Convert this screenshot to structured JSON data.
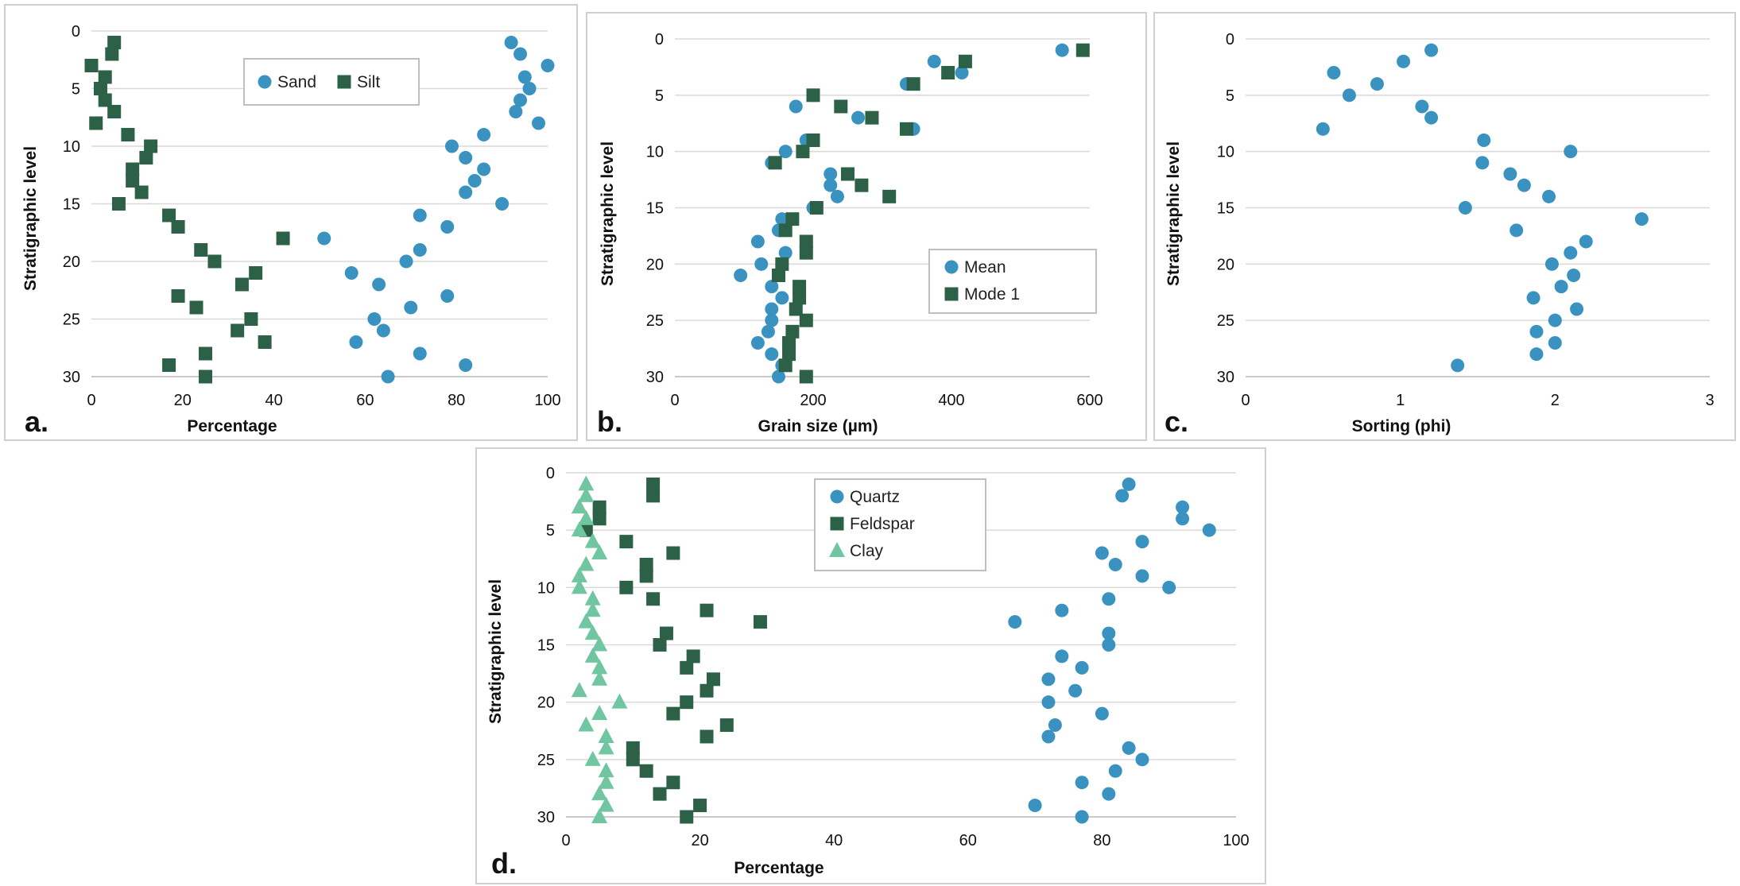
{
  "colors": {
    "blue": "#3a92c0",
    "green": "#2c6147",
    "mint": "#6fc6a1",
    "grid": "#d9d9d9",
    "legend_border": "#bfbfbf"
  },
  "chart_data": [
    {
      "panel": "a.",
      "type": "scatter",
      "xlabel": "Percentage",
      "ylabel": "Stratigraphic level",
      "xlim": [
        0,
        100
      ],
      "ylim": [
        0,
        30
      ],
      "y_reversed": true,
      "xticks": [
        "0",
        "20",
        "40",
        "60",
        "80",
        "100"
      ],
      "yticks": [
        "0",
        "5",
        "10",
        "15",
        "20",
        "25",
        "30"
      ],
      "grid": "horizontal",
      "legend_position": "top-center",
      "series": [
        {
          "name": "Sand",
          "marker": "circle",
          "color": "#3a92c0",
          "points": [
            [
              92,
              1
            ],
            [
              94,
              2
            ],
            [
              100,
              3
            ],
            [
              95,
              4
            ],
            [
              96,
              5
            ],
            [
              94,
              6
            ],
            [
              93,
              7
            ],
            [
              98,
              8
            ],
            [
              86,
              9
            ],
            [
              79,
              10
            ],
            [
              82,
              11
            ],
            [
              86,
              12
            ],
            [
              84,
              13
            ],
            [
              82,
              14
            ],
            [
              90,
              15
            ],
            [
              72,
              16
            ],
            [
              78,
              17
            ],
            [
              51,
              18
            ],
            [
              72,
              19
            ],
            [
              69,
              20
            ],
            [
              57,
              21
            ],
            [
              63,
              22
            ],
            [
              78,
              23
            ],
            [
              70,
              24
            ],
            [
              62,
              25
            ],
            [
              64,
              26
            ],
            [
              58,
              27
            ],
            [
              72,
              28
            ],
            [
              82,
              29
            ],
            [
              65,
              30
            ]
          ]
        },
        {
          "name": "Silt",
          "marker": "square",
          "color": "#2c6147",
          "points": [
            [
              5,
              1
            ],
            [
              4.5,
              2
            ],
            [
              0,
              3
            ],
            [
              3,
              4
            ],
            [
              2,
              5
            ],
            [
              3,
              6
            ],
            [
              5,
              7
            ],
            [
              1,
              8
            ],
            [
              8,
              9
            ],
            [
              13,
              10
            ],
            [
              12,
              11
            ],
            [
              9,
              12
            ],
            [
              9,
              13
            ],
            [
              11,
              14
            ],
            [
              6,
              15
            ],
            [
              17,
              16
            ],
            [
              19,
              17
            ],
            [
              42,
              18
            ],
            [
              24,
              19
            ],
            [
              27,
              20
            ],
            [
              36,
              21
            ],
            [
              33,
              22
            ],
            [
              19,
              23
            ],
            [
              23,
              24
            ],
            [
              35,
              25
            ],
            [
              32,
              26
            ],
            [
              38,
              27
            ],
            [
              25,
              28
            ],
            [
              17,
              29
            ],
            [
              25,
              30
            ]
          ]
        }
      ]
    },
    {
      "panel": "b.",
      "type": "scatter",
      "xlabel": "Grain size (µm)",
      "ylabel": "Stratigraphic level",
      "xlim": [
        0,
        600
      ],
      "ylim": [
        0,
        30
      ],
      "y_reversed": true,
      "xticks": [
        "0",
        "200",
        "400",
        "600"
      ],
      "yticks": [
        "0",
        "5",
        "10",
        "15",
        "20",
        "25",
        "30"
      ],
      "grid": "horizontal",
      "legend_position": "center-right",
      "series": [
        {
          "name": "Mean",
          "marker": "circle",
          "color": "#3a92c0",
          "points": [
            [
              560,
              1
            ],
            [
              375,
              2
            ],
            [
              415,
              3
            ],
            [
              335,
              4
            ],
            [
              200,
              5
            ],
            [
              175,
              6
            ],
            [
              265,
              7
            ],
            [
              345,
              8
            ],
            [
              190,
              9
            ],
            [
              160,
              10
            ],
            [
              140,
              11
            ],
            [
              225,
              12
            ],
            [
              225,
              13
            ],
            [
              235,
              14
            ],
            [
              200,
              15
            ],
            [
              155,
              16
            ],
            [
              150,
              17
            ],
            [
              120,
              18
            ],
            [
              160,
              19
            ],
            [
              125,
              20
            ],
            [
              95,
              21
            ],
            [
              140,
              22
            ],
            [
              155,
              23
            ],
            [
              140,
              24
            ],
            [
              140,
              25
            ],
            [
              135,
              26
            ],
            [
              120,
              27
            ],
            [
              140,
              28
            ],
            [
              155,
              29
            ],
            [
              150,
              30
            ]
          ]
        },
        {
          "name": "Mode 1",
          "marker": "square",
          "color": "#2c6147",
          "points": [
            [
              590,
              1
            ],
            [
              420,
              2
            ],
            [
              395,
              3
            ],
            [
              345,
              4
            ],
            [
              200,
              5
            ],
            [
              240,
              6
            ],
            [
              285,
              7
            ],
            [
              335,
              8
            ],
            [
              200,
              9
            ],
            [
              185,
              10
            ],
            [
              145,
              11
            ],
            [
              250,
              12
            ],
            [
              270,
              13
            ],
            [
              310,
              14
            ],
            [
              205,
              15
            ],
            [
              170,
              16
            ],
            [
              160,
              17
            ],
            [
              190,
              18
            ],
            [
              190,
              19
            ],
            [
              155,
              20
            ],
            [
              150,
              21
            ],
            [
              180,
              22
            ],
            [
              180,
              23
            ],
            [
              175,
              24
            ],
            [
              190,
              25
            ],
            [
              170,
              26
            ],
            [
              165,
              27
            ],
            [
              165,
              28
            ],
            [
              160,
              29
            ],
            [
              190,
              30
            ]
          ]
        }
      ]
    },
    {
      "panel": "c.",
      "type": "scatter",
      "xlabel": "Sorting (phi)",
      "ylabel": "Stratigraphic level",
      "xlim": [
        0,
        3
      ],
      "ylim": [
        0,
        30
      ],
      "y_reversed": true,
      "xticks": [
        "0",
        "1",
        "2",
        "3"
      ],
      "yticks": [
        "0",
        "5",
        "10",
        "15",
        "20",
        "25",
        "30"
      ],
      "grid": "horizontal",
      "series": [
        {
          "name": "",
          "marker": "circle",
          "color": "#3a92c0",
          "points": [
            [
              1.2,
              1
            ],
            [
              1.02,
              2
            ],
            [
              0.57,
              3
            ],
            [
              0.85,
              4
            ],
            [
              0.67,
              5
            ],
            [
              1.14,
              6
            ],
            [
              1.2,
              7
            ],
            [
              0.5,
              8
            ],
            [
              1.54,
              9
            ],
            [
              2.1,
              10
            ],
            [
              1.53,
              11
            ],
            [
              1.71,
              12
            ],
            [
              1.8,
              13
            ],
            [
              1.96,
              14
            ],
            [
              1.42,
              15
            ],
            [
              2.56,
              16
            ],
            [
              1.75,
              17
            ],
            [
              2.2,
              18
            ],
            [
              2.1,
              19
            ],
            [
              1.98,
              20
            ],
            [
              2.12,
              21
            ],
            [
              2.04,
              22
            ],
            [
              1.86,
              23
            ],
            [
              2.14,
              24
            ],
            [
              2.0,
              25
            ],
            [
              1.88,
              26
            ],
            [
              2.0,
              27
            ],
            [
              1.88,
              28
            ],
            [
              1.37,
              29
            ]
          ]
        }
      ]
    },
    {
      "panel": "d.",
      "type": "scatter",
      "xlabel": "Percentage",
      "ylabel": "Stratigraphic level",
      "xlim": [
        0,
        100
      ],
      "ylim": [
        0,
        30
      ],
      "y_reversed": true,
      "xticks": [
        "0",
        "20",
        "40",
        "60",
        "80",
        "100"
      ],
      "yticks": [
        "0",
        "5",
        "10",
        "15",
        "20",
        "25",
        "30"
      ],
      "grid": "horizontal",
      "legend_position": "top-left",
      "series": [
        {
          "name": "Quartz",
          "marker": "circle",
          "color": "#3a92c0",
          "points": [
            [
              84,
              1
            ],
            [
              83,
              2
            ],
            [
              92,
              3
            ],
            [
              92,
              4
            ],
            [
              96,
              5
            ],
            [
              86,
              6
            ],
            [
              80,
              7
            ],
            [
              82,
              8
            ],
            [
              86,
              9
            ],
            [
              90,
              10
            ],
            [
              81,
              11
            ],
            [
              74,
              12
            ],
            [
              67,
              13
            ],
            [
              81,
              14
            ],
            [
              81,
              15
            ],
            [
              74,
              16
            ],
            [
              77,
              17
            ],
            [
              72,
              18
            ],
            [
              76,
              19
            ],
            [
              72,
              20
            ],
            [
              80,
              21
            ],
            [
              73,
              22
            ],
            [
              72,
              23
            ],
            [
              84,
              24
            ],
            [
              86,
              25
            ],
            [
              82,
              26
            ],
            [
              77,
              27
            ],
            [
              81,
              28
            ],
            [
              70,
              29
            ],
            [
              77,
              30
            ]
          ]
        },
        {
          "name": "Feldspar",
          "marker": "square",
          "color": "#2c6147",
          "points": [
            [
              13,
              1
            ],
            [
              13,
              2
            ],
            [
              5,
              3
            ],
            [
              5,
              4
            ],
            [
              3,
              5
            ],
            [
              9,
              6
            ],
            [
              16,
              7
            ],
            [
              12,
              8
            ],
            [
              12,
              9
            ],
            [
              9,
              10
            ],
            [
              13,
              11
            ],
            [
              21,
              12
            ],
            [
              29,
              13
            ],
            [
              15,
              14
            ],
            [
              14,
              15
            ],
            [
              19,
              16
            ],
            [
              18,
              17
            ],
            [
              22,
              18
            ],
            [
              21,
              19
            ],
            [
              18,
              20
            ],
            [
              16,
              21
            ],
            [
              24,
              22
            ],
            [
              21,
              23
            ],
            [
              10,
              24
            ],
            [
              10,
              25
            ],
            [
              12,
              26
            ],
            [
              16,
              27
            ],
            [
              14,
              28
            ],
            [
              20,
              29
            ],
            [
              18,
              30
            ]
          ]
        },
        {
          "name": "Clay",
          "marker": "triangle",
          "color": "#6fc6a1",
          "points": [
            [
              3,
              1
            ],
            [
              3,
              2
            ],
            [
              2,
              3
            ],
            [
              3,
              4
            ],
            [
              2,
              5
            ],
            [
              4,
              6
            ],
            [
              5,
              7
            ],
            [
              3,
              8
            ],
            [
              2,
              9
            ],
            [
              2,
              10
            ],
            [
              4,
              11
            ],
            [
              4,
              12
            ],
            [
              3,
              13
            ],
            [
              4,
              14
            ],
            [
              5,
              15
            ],
            [
              4,
              16
            ],
            [
              5,
              17
            ],
            [
              5,
              18
            ],
            [
              2,
              19
            ],
            [
              8,
              20
            ],
            [
              5,
              21
            ],
            [
              3,
              22
            ],
            [
              6,
              23
            ],
            [
              6,
              24
            ],
            [
              4,
              25
            ],
            [
              6,
              26
            ],
            [
              6,
              27
            ],
            [
              5,
              28
            ],
            [
              6,
              29
            ],
            [
              5,
              30
            ]
          ]
        }
      ]
    }
  ]
}
